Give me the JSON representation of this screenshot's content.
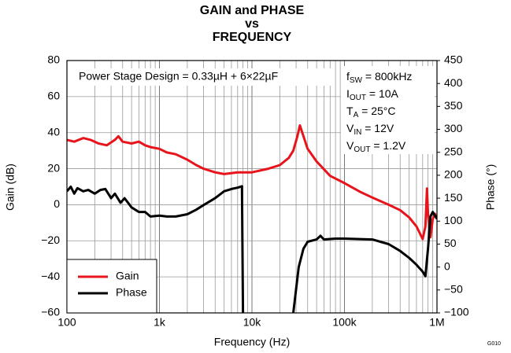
{
  "chart_data": {
    "type": "line",
    "title": [
      "GAIN and PHASE",
      "vs",
      "FREQUENCY"
    ],
    "xlabel": "Frequency (Hz)",
    "ylabel": "Gain (dB)",
    "y2label": "Phase (°)",
    "figure_id": "G010",
    "annotation": "Power Stage Design = 0.33µH + 6×22µF",
    "conditions": [
      {
        "name": "f",
        "sub": "SW",
        "value": " = 800kHz"
      },
      {
        "name": "I",
        "sub": "OUT",
        "value": " = 10A"
      },
      {
        "name": "T",
        "sub": "A",
        "value": " = 25°C"
      },
      {
        "name": "V",
        "sub": "IN",
        "value": " = 12V"
      },
      {
        "name": "V",
        "sub": "OUT",
        "value": " = 1.2V"
      }
    ],
    "xscale": "log",
    "xlim": [
      100,
      1000000
    ],
    "xticks": [
      100,
      {
        "value": 1000,
        "label": "1k"
      },
      {
        "value": 10000,
        "label": "10k"
      },
      {
        "value": 100000,
        "label": "100k"
      },
      {
        "value": 1000000,
        "label": "1M"
      }
    ],
    "xticks_minor": [
      200,
      300,
      400,
      500,
      600,
      700,
      800,
      900,
      2000,
      3000,
      4000,
      5000,
      6000,
      7000,
      8000,
      9000,
      20000,
      30000,
      40000,
      50000,
      60000,
      70000,
      80000,
      90000,
      200000,
      300000,
      400000,
      500000,
      600000,
      700000,
      800000,
      900000
    ],
    "ylim": [
      -60,
      80
    ],
    "yticks": [
      {
        "value": -60,
        "label": "−60"
      },
      {
        "value": -40,
        "label": "−40"
      },
      {
        "value": -20,
        "label": "−20"
      },
      0,
      20,
      40,
      60,
      80
    ],
    "y2lim": [
      -100,
      450
    ],
    "y2ticks": [
      {
        "value": -100,
        "label": "−100"
      },
      {
        "value": -50,
        "label": "−50"
      },
      0,
      50,
      100,
      150,
      200,
      250,
      300,
      350,
      400,
      450
    ],
    "grid": true,
    "legend": "lower left",
    "series": [
      {
        "name": "Gain",
        "color": "#e8141c",
        "axis": "y",
        "x": [
          100,
          120,
          150,
          180,
          220,
          270,
          330,
          360,
          400,
          500,
          600,
          700,
          800,
          1000,
          1200,
          1500,
          2000,
          2500,
          3000,
          4000,
          5000,
          7000,
          10000,
          15000,
          20000,
          25000,
          28000,
          31000,
          33000,
          35000,
          40000,
          50000,
          70000,
          100000,
          150000,
          200000,
          300000,
          400000,
          500000,
          600000,
          700000,
          750000,
          780000,
          800000,
          850000,
          900000,
          950000,
          1000000
        ],
        "values": [
          36,
          35,
          37,
          36,
          34,
          33,
          36,
          38,
          35,
          34,
          35,
          33,
          32,
          31,
          29,
          28,
          25,
          22,
          20,
          18,
          17,
          18,
          18,
          20,
          22,
          26,
          30,
          38,
          44,
          40,
          31,
          24,
          16,
          12,
          7,
          4,
          0,
          -3,
          -7,
          -12,
          -19,
          -12,
          9,
          -5,
          -18,
          -8,
          -5,
          -8
        ]
      },
      {
        "name": "Phase",
        "color": "#000000",
        "axis": "y2",
        "x": [
          100,
          110,
          120,
          130,
          150,
          170,
          200,
          230,
          260,
          300,
          330,
          380,
          420,
          500,
          600,
          700,
          800,
          1000,
          1200,
          1500,
          2000,
          2500,
          3000,
          4000,
          5000,
          6000,
          7000,
          7800,
          8000,
          15000,
          28000,
          32000,
          36000,
          40000,
          50000,
          55000,
          60000,
          80000,
          100000,
          200000,
          300000,
          400000,
          500000,
          600000,
          700000,
          750000,
          800000,
          850000,
          900000,
          1000000
        ],
        "values": [
          165,
          175,
          160,
          172,
          165,
          168,
          160,
          168,
          170,
          150,
          160,
          140,
          150,
          130,
          120,
          120,
          110,
          112,
          110,
          110,
          115,
          125,
          135,
          150,
          165,
          170,
          173,
          176,
          -100,
          null,
          -100,
          0,
          40,
          55,
          60,
          68,
          60,
          62,
          62,
          60,
          50,
          35,
          20,
          5,
          -10,
          -20,
          40,
          110,
          120,
          105
        ]
      }
    ]
  }
}
